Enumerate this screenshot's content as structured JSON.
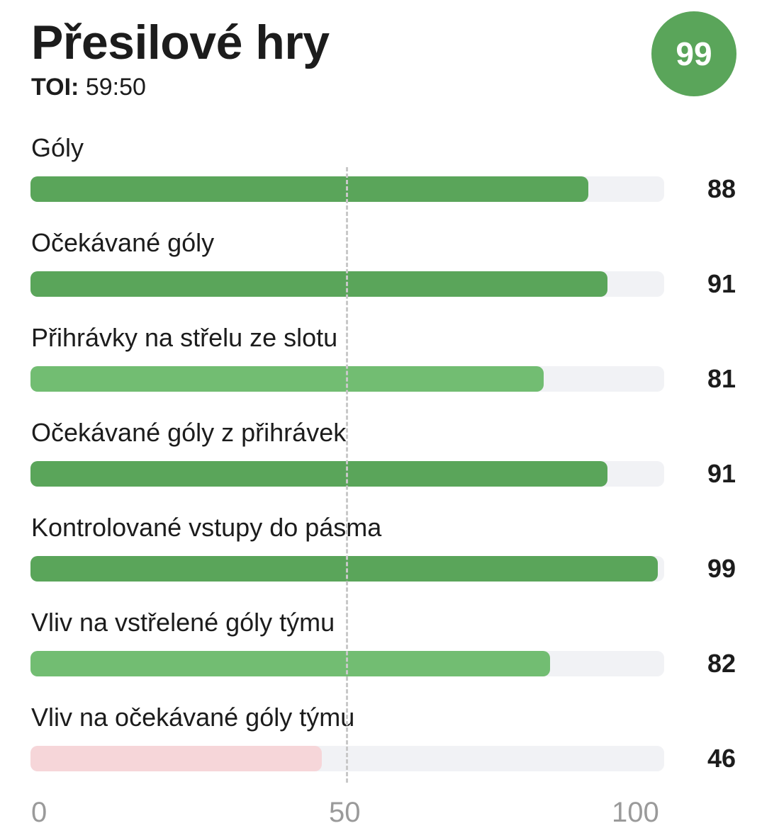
{
  "header": {
    "title": "Přesilové hry",
    "toi_label": "TOI:",
    "toi_value": "59:50",
    "overall_score": "99"
  },
  "colors": {
    "strong": "#5aa55a",
    "good": "#72bd72",
    "weak": "#f6d6d9",
    "track": "#f1f2f5"
  },
  "chart_data": {
    "type": "bar",
    "orientation": "horizontal",
    "categories": [
      "Góly",
      "Očekávané góly",
      "Přihrávky na střelu ze slotu",
      "Očekávané góly z přihrávek",
      "Kontrolované vstupy do pásma",
      "Vliv na vstřelené góly týmu",
      "Vliv na očekávané góly týmu"
    ],
    "values": [
      88,
      91,
      81,
      91,
      99,
      82,
      46
    ],
    "xlim": [
      0,
      100
    ],
    "x_ticks": [
      "0",
      "50",
      "100"
    ],
    "reference_line": 50,
    "grid": false
  }
}
